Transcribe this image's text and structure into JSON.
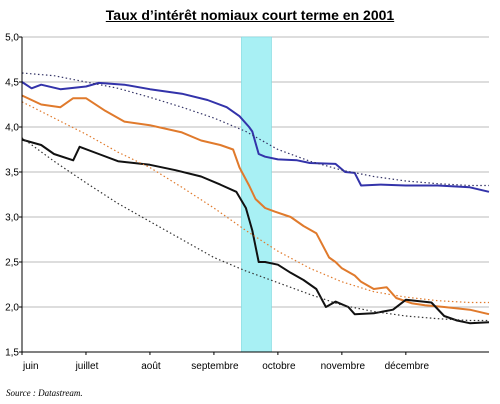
{
  "chart_data": {
    "type": "line",
    "title": "Taux d’intérêt nomiaux court terme en 2001",
    "source": "Source : Datastream.",
    "xlabel": "",
    "ylabel": "",
    "ylim": [
      1.5,
      5.0
    ],
    "yticks": [
      "1,5",
      "2,0",
      "2,5",
      "3,0",
      "3,5",
      "4,0",
      "4,5",
      "5,0"
    ],
    "xticks": [
      "juin",
      "juillet",
      "août",
      "septembre",
      "octobre",
      "novembre",
      "décembre"
    ],
    "xlim": [
      0,
      7.3
    ],
    "grid": true,
    "legend": "none",
    "highlight": {
      "x_start": 3.43,
      "x_end": 3.9,
      "color": "#a8f0f4"
    },
    "series": [
      {
        "color": "#3333aa",
        "style": "solid",
        "points": [
          [
            0,
            4.5
          ],
          [
            0.15,
            4.43
          ],
          [
            0.3,
            4.47
          ],
          [
            0.6,
            4.42
          ],
          [
            1.0,
            4.45
          ],
          [
            1.2,
            4.49
          ],
          [
            1.6,
            4.47
          ],
          [
            2.0,
            4.42
          ],
          [
            2.5,
            4.37
          ],
          [
            2.9,
            4.3
          ],
          [
            3.2,
            4.22
          ],
          [
            3.4,
            4.12
          ],
          [
            3.55,
            4.0
          ],
          [
            3.6,
            3.95
          ],
          [
            3.7,
            3.7
          ],
          [
            3.8,
            3.67
          ],
          [
            4.0,
            3.64
          ],
          [
            4.3,
            3.63
          ],
          [
            4.5,
            3.6
          ],
          [
            4.9,
            3.59
          ],
          [
            5.05,
            3.5
          ],
          [
            5.2,
            3.49
          ],
          [
            5.3,
            3.35
          ],
          [
            5.6,
            3.36
          ],
          [
            6.0,
            3.35
          ],
          [
            6.5,
            3.35
          ],
          [
            7.0,
            3.33
          ],
          [
            7.3,
            3.28
          ]
        ]
      },
      {
        "color": "#e07a2c",
        "style": "solid",
        "points": [
          [
            0,
            4.35
          ],
          [
            0.3,
            4.25
          ],
          [
            0.6,
            4.22
          ],
          [
            0.8,
            4.32
          ],
          [
            1.0,
            4.32
          ],
          [
            1.3,
            4.18
          ],
          [
            1.6,
            4.06
          ],
          [
            2.0,
            4.02
          ],
          [
            2.5,
            3.94
          ],
          [
            2.8,
            3.85
          ],
          [
            3.1,
            3.8
          ],
          [
            3.3,
            3.75
          ],
          [
            3.4,
            3.55
          ],
          [
            3.55,
            3.35
          ],
          [
            3.65,
            3.2
          ],
          [
            3.8,
            3.1
          ],
          [
            3.95,
            3.06
          ],
          [
            4.2,
            3.0
          ],
          [
            4.4,
            2.9
          ],
          [
            4.6,
            2.82
          ],
          [
            4.8,
            2.55
          ],
          [
            4.9,
            2.5
          ],
          [
            5.0,
            2.43
          ],
          [
            5.2,
            2.35
          ],
          [
            5.3,
            2.28
          ],
          [
            5.5,
            2.2
          ],
          [
            5.7,
            2.22
          ],
          [
            5.85,
            2.1
          ],
          [
            6.1,
            2.04
          ],
          [
            6.3,
            2.02
          ],
          [
            6.6,
            2.0
          ],
          [
            7.0,
            1.97
          ],
          [
            7.3,
            1.92
          ]
        ]
      },
      {
        "color": "#111111",
        "style": "solid",
        "points": [
          [
            0,
            3.86
          ],
          [
            0.3,
            3.8
          ],
          [
            0.5,
            3.7
          ],
          [
            0.8,
            3.63
          ],
          [
            0.9,
            3.78
          ],
          [
            1.2,
            3.7
          ],
          [
            1.5,
            3.62
          ],
          [
            2.0,
            3.58
          ],
          [
            2.4,
            3.52
          ],
          [
            2.8,
            3.45
          ],
          [
            3.1,
            3.36
          ],
          [
            3.35,
            3.28
          ],
          [
            3.5,
            3.1
          ],
          [
            3.6,
            2.85
          ],
          [
            3.7,
            2.5
          ],
          [
            3.8,
            2.5
          ],
          [
            4.0,
            2.47
          ],
          [
            4.2,
            2.38
          ],
          [
            4.4,
            2.3
          ],
          [
            4.6,
            2.2
          ],
          [
            4.75,
            2.0
          ],
          [
            4.9,
            2.06
          ],
          [
            5.1,
            2.0
          ],
          [
            5.2,
            1.92
          ],
          [
            5.5,
            1.93
          ],
          [
            5.8,
            1.97
          ],
          [
            6.0,
            2.08
          ],
          [
            6.4,
            2.05
          ],
          [
            6.6,
            1.9
          ],
          [
            6.8,
            1.85
          ],
          [
            7.0,
            1.82
          ],
          [
            7.3,
            1.83
          ]
        ]
      },
      {
        "color": "#333366",
        "style": "dotted",
        "points": [
          [
            0,
            4.6
          ],
          [
            0.5,
            4.57
          ],
          [
            1.0,
            4.5
          ],
          [
            1.5,
            4.43
          ],
          [
            2.0,
            4.33
          ],
          [
            2.5,
            4.22
          ],
          [
            3.0,
            4.1
          ],
          [
            3.5,
            3.95
          ],
          [
            4.0,
            3.75
          ],
          [
            4.5,
            3.62
          ],
          [
            5.0,
            3.52
          ],
          [
            5.5,
            3.45
          ],
          [
            6.0,
            3.4
          ],
          [
            6.5,
            3.37
          ],
          [
            7.0,
            3.35
          ],
          [
            7.3,
            3.35
          ]
        ]
      },
      {
        "color": "#e07a2c",
        "style": "dotted",
        "points": [
          [
            0,
            4.28
          ],
          [
            0.5,
            4.1
          ],
          [
            1.0,
            3.92
          ],
          [
            1.5,
            3.72
          ],
          [
            2.0,
            3.55
          ],
          [
            2.5,
            3.33
          ],
          [
            3.0,
            3.1
          ],
          [
            3.5,
            2.85
          ],
          [
            4.0,
            2.62
          ],
          [
            4.5,
            2.43
          ],
          [
            5.0,
            2.28
          ],
          [
            5.5,
            2.17
          ],
          [
            6.0,
            2.11
          ],
          [
            6.5,
            2.07
          ],
          [
            7.0,
            2.05
          ],
          [
            7.3,
            2.05
          ]
        ]
      },
      {
        "color": "#333333",
        "style": "dotted",
        "points": [
          [
            0,
            3.88
          ],
          [
            0.5,
            3.62
          ],
          [
            1.0,
            3.38
          ],
          [
            1.5,
            3.15
          ],
          [
            2.0,
            2.95
          ],
          [
            2.5,
            2.75
          ],
          [
            3.0,
            2.55
          ],
          [
            3.5,
            2.4
          ],
          [
            4.0,
            2.27
          ],
          [
            4.5,
            2.14
          ],
          [
            5.0,
            2.02
          ],
          [
            5.5,
            1.95
          ],
          [
            6.0,
            1.9
          ],
          [
            6.5,
            1.87
          ],
          [
            7.0,
            1.85
          ],
          [
            7.3,
            1.85
          ]
        ]
      }
    ]
  }
}
